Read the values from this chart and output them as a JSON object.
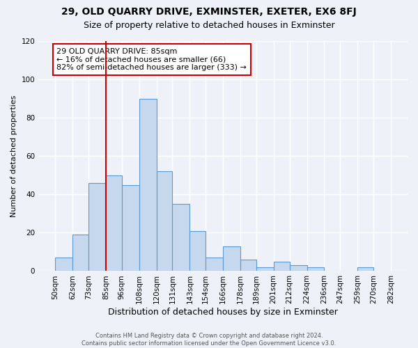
{
  "title": "29, OLD QUARRY DRIVE, EXMINSTER, EXETER, EX6 8FJ",
  "subtitle": "Size of property relative to detached houses in Exminster",
  "xlabel": "Distribution of detached houses by size in Exminster",
  "ylabel": "Number of detached properties",
  "bar_color": "#c5d8ed",
  "bar_edge_color": "#5b9bd5",
  "bin_edges": [
    50,
    62,
    73,
    85,
    96,
    108,
    120,
    131,
    143,
    154,
    166,
    178,
    189,
    201,
    212,
    224,
    236,
    247,
    259,
    270,
    282
  ],
  "bar_heights": [
    7,
    19,
    46,
    50,
    45,
    90,
    52,
    35,
    21,
    7,
    13,
    6,
    2,
    5,
    3,
    2,
    0,
    0,
    2,
    0
  ],
  "ylim": [
    0,
    120
  ],
  "yticks": [
    0,
    20,
    40,
    60,
    80,
    100,
    120
  ],
  "property_size": 85,
  "vline_color": "#cc0000",
  "annotation_text": "29 OLD QUARRY DRIVE: 85sqm\n← 16% of detached houses are smaller (66)\n82% of semi-detached houses are larger (333) →",
  "annotation_box_color": "#ffffff",
  "annotation_box_edge": "#cc0000",
  "footer_text": "Contains HM Land Registry data © Crown copyright and database right 2024.\nContains public sector information licensed under the Open Government Licence v3.0.",
  "background_color": "#eef2f8",
  "grid_color": "#ffffff",
  "title_fontsize": 10,
  "subtitle_fontsize": 9,
  "xlabel_fontsize": 9,
  "ylabel_fontsize": 8,
  "tick_fontsize": 7.5,
  "annotation_fontsize": 8
}
